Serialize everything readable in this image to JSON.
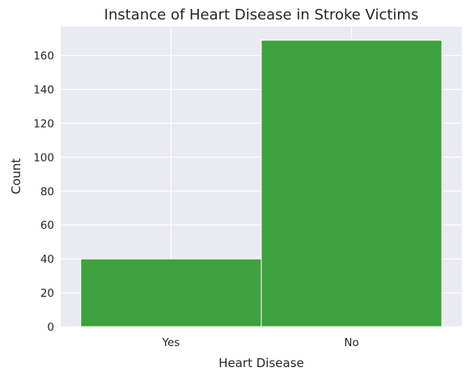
{
  "chart_data": {
    "type": "bar",
    "title": "Instance of Heart Disease in Stroke Victims",
    "xlabel": "Heart Disease",
    "ylabel": "Count",
    "categories": [
      "Yes",
      "No"
    ],
    "values": [
      40,
      169
    ],
    "ylim": [
      0,
      177
    ],
    "yticks": [
      0,
      20,
      40,
      60,
      80,
      100,
      120,
      140,
      160
    ],
    "grid": true,
    "bar_color": "#2e9a2e",
    "plot_background": "#eaeaf2"
  }
}
